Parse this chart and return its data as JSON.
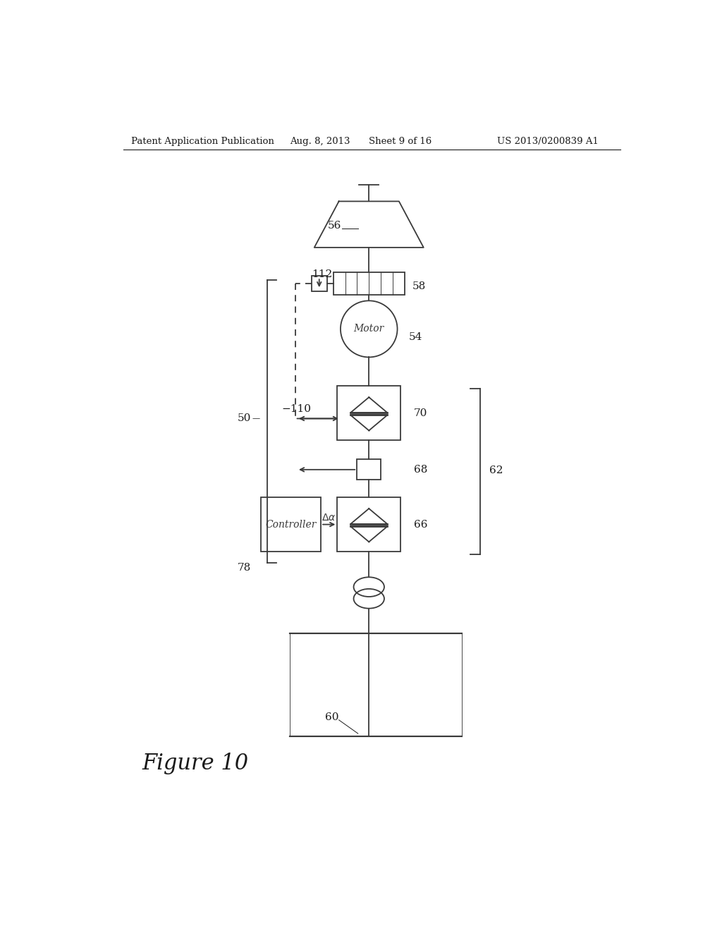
{
  "bg_color": "#ffffff",
  "line_color": "#3a3a3a",
  "header_left": "Patent Application Publication",
  "header_mid1": "Aug. 8, 2013",
  "header_mid2": "Sheet 9 of 16",
  "header_right": "US 2013/0200839 A1",
  "figure_label": "Figure 10"
}
